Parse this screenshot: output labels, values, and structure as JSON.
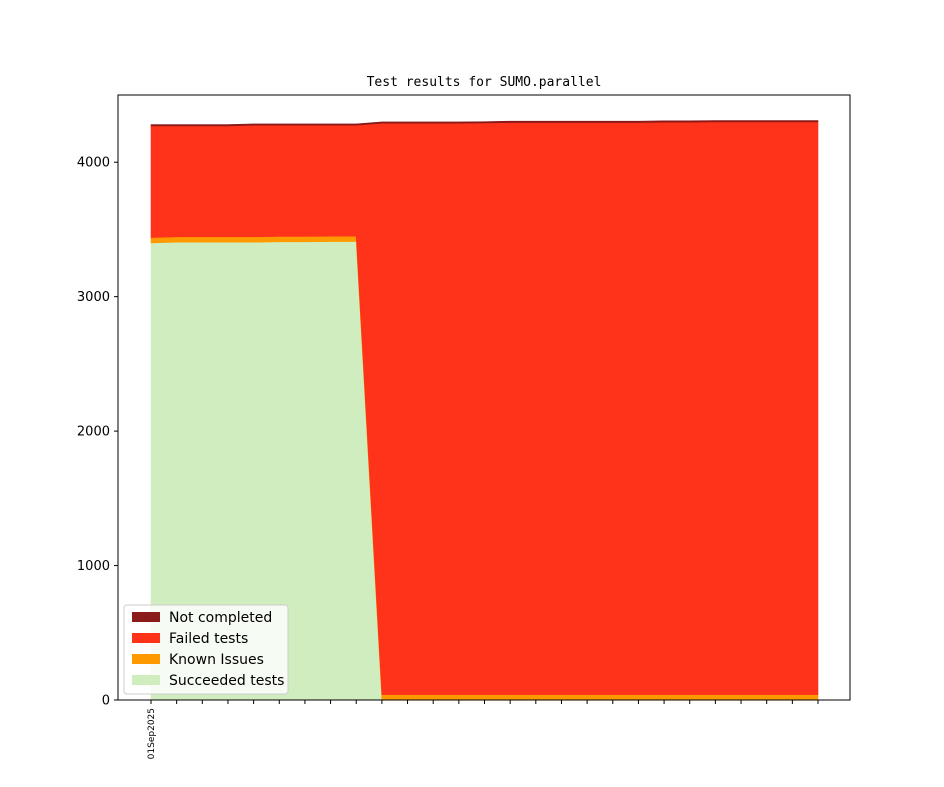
{
  "chart_data": {
    "type": "area",
    "stacked": true,
    "title": "Test results for SUMO.parallel",
    "xlabel": "",
    "ylabel": "",
    "ylim": [
      0,
      4500
    ],
    "yticks": [
      0,
      1000,
      2000,
      3000,
      4000
    ],
    "x_tick_count": 27,
    "x_tick_labels": [
      {
        "index": 0,
        "label": "01Sep2025"
      }
    ],
    "legend_position": "lower-left",
    "series": [
      {
        "name": "Succeeded tests",
        "color": "#d0edc0",
        "values": [
          3400,
          3405,
          3405,
          3405,
          3405,
          3408,
          3408,
          3410,
          3410,
          0,
          0,
          0,
          0,
          0,
          0,
          0,
          0,
          0,
          0,
          0,
          0,
          0,
          0,
          0,
          0,
          0,
          0
        ]
      },
      {
        "name": "Known Issues",
        "color": "#ff9900",
        "values": [
          40,
          40,
          40,
          40,
          40,
          40,
          40,
          40,
          40,
          40,
          40,
          40,
          40,
          40,
          40,
          40,
          40,
          40,
          40,
          40,
          40,
          40,
          40,
          40,
          40,
          40,
          40
        ]
      },
      {
        "name": "Failed tests",
        "color": "#ff321a",
        "values": [
          830,
          825,
          825,
          825,
          830,
          827,
          827,
          825,
          825,
          4250,
          4250,
          4250,
          4250,
          4252,
          4255,
          4255,
          4255,
          4255,
          4255,
          4255,
          4258,
          4258,
          4260,
          4260,
          4260,
          4260,
          4260
        ]
      },
      {
        "name": "Not completed",
        "color": "#8b1a1a",
        "values": [
          10,
          10,
          10,
          10,
          10,
          10,
          10,
          10,
          10,
          10,
          10,
          10,
          10,
          10,
          10,
          10,
          10,
          10,
          10,
          10,
          10,
          10,
          10,
          10,
          10,
          10,
          10
        ]
      }
    ],
    "legend_order": [
      "Not completed",
      "Failed tests",
      "Known Issues",
      "Succeeded tests"
    ]
  }
}
